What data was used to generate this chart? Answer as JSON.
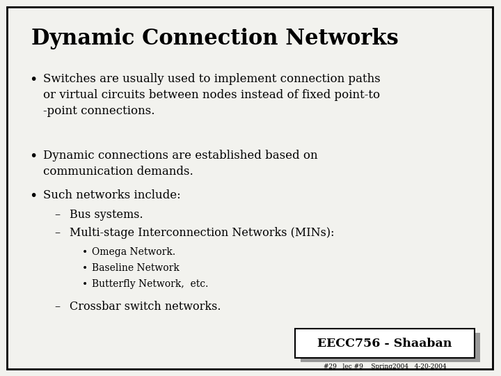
{
  "title": "Dynamic Connection Networks",
  "background_color": "#f2f2ee",
  "border_color": "#000000",
  "text_color": "#000000",
  "title_fontsize": 22,
  "body_fontsize": 12,
  "footer_label": "EECC756 - Shaaban",
  "footer_sub": "#29   lec #9    Spring2004   4-20-2004",
  "bullet1": "Switches are usually used to implement connection paths\nor virtual circuits between nodes instead of fixed point-to\n-point connections.",
  "bullet2": "Dynamic connections are established based on\ncommunication demands.",
  "bullet3": "Such networks include:",
  "sub1": "Bus systems.",
  "sub2": "Multi-stage Interconnection Networks (MINs):",
  "subsub1": "Omega Network.",
  "subsub2": "Baseline Network",
  "subsub3": "Butterfly Network,  etc.",
  "sub3": "Crossbar switch networks."
}
